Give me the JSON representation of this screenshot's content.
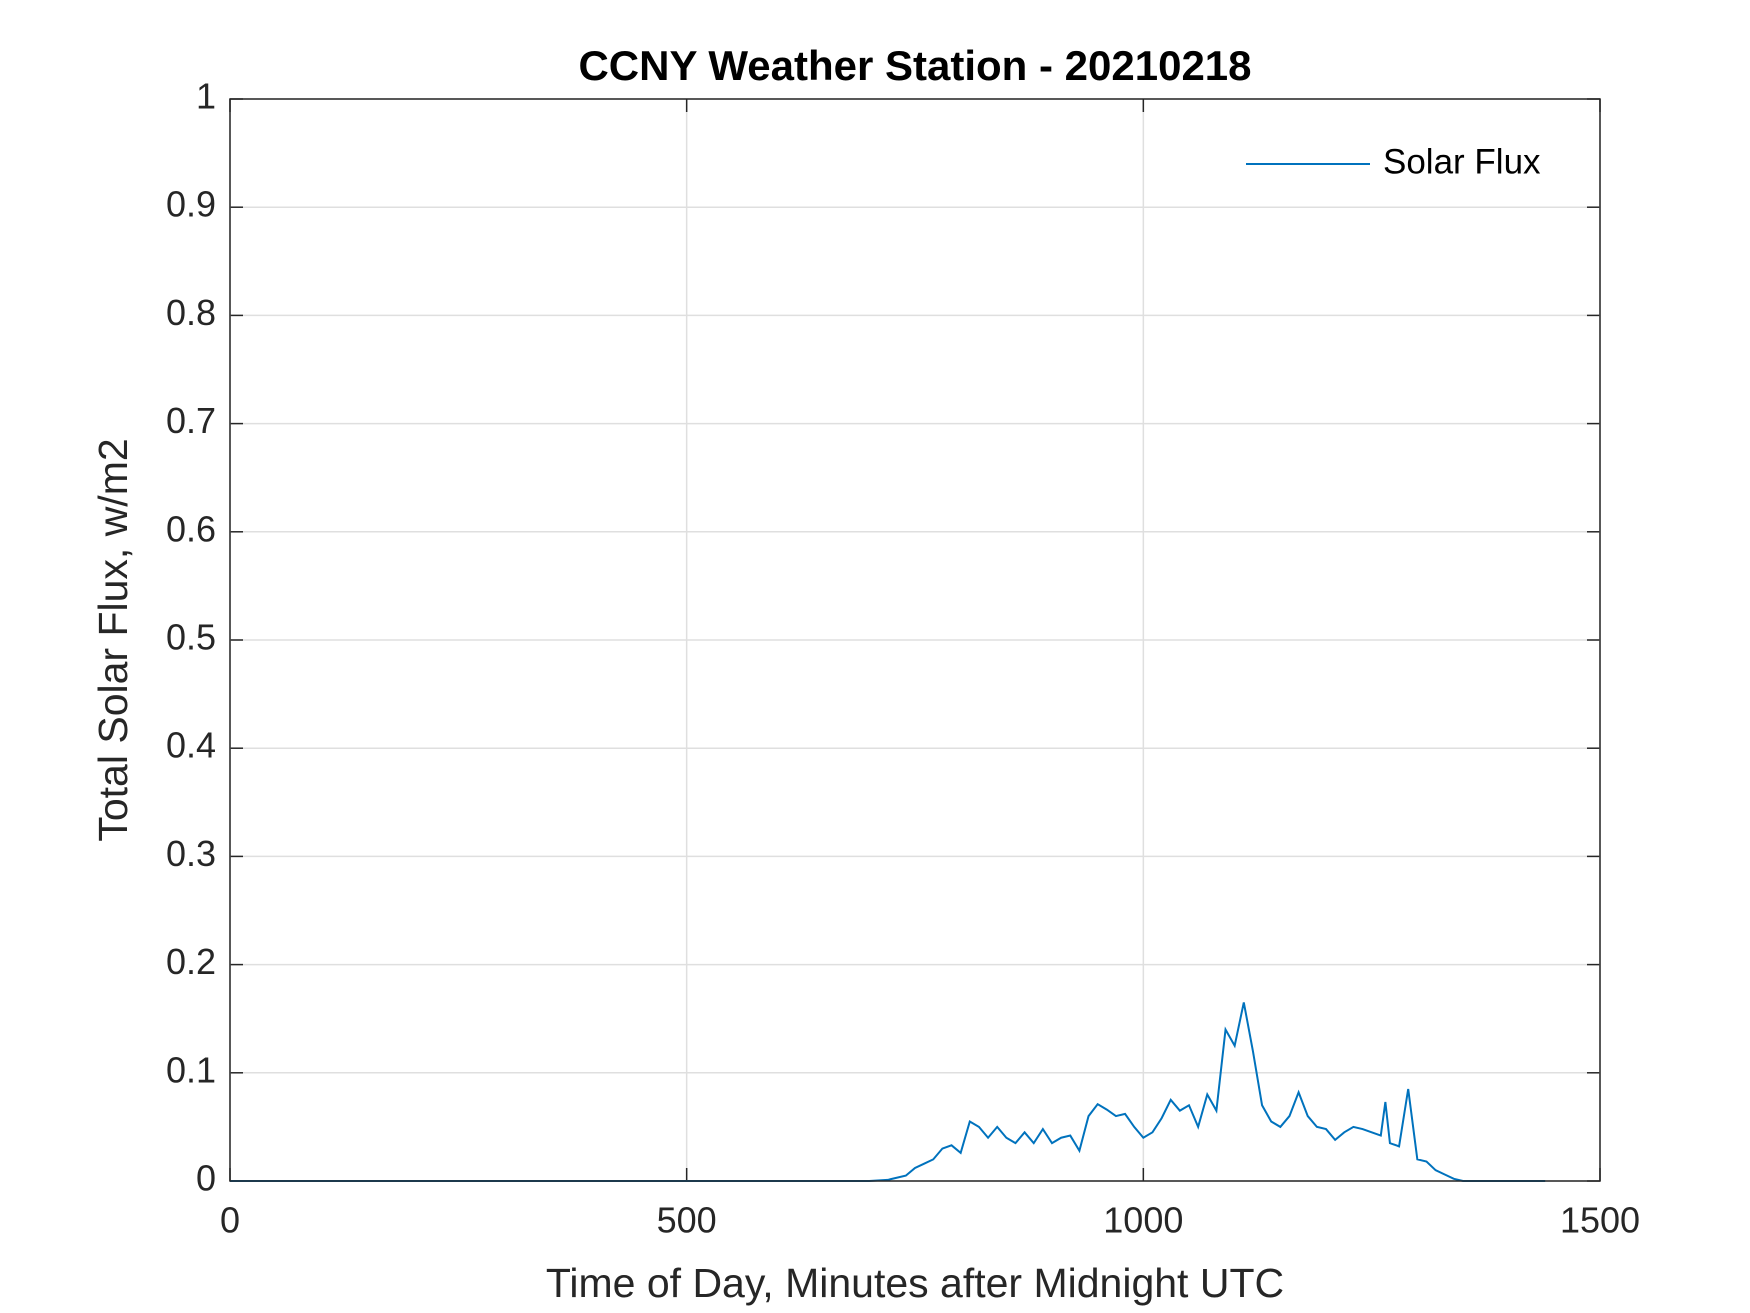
{
  "chart_data": {
    "type": "line",
    "title": "CCNY Weather Station - 20210218",
    "x_label": "Time of Day, Minutes after Midnight UTC",
    "y_label": "Total Solar Flux, w/m2",
    "x": [
      0,
      700,
      720,
      740,
      750,
      760,
      770,
      780,
      790,
      800,
      810,
      820,
      830,
      840,
      850,
      860,
      870,
      880,
      890,
      900,
      910,
      920,
      930,
      940,
      950,
      960,
      970,
      980,
      990,
      1000,
      1010,
      1020,
      1030,
      1040,
      1050,
      1060,
      1070,
      1080,
      1090,
      1100,
      1110,
      1120,
      1130,
      1140,
      1150,
      1160,
      1170,
      1180,
      1190,
      1200,
      1210,
      1220,
      1230,
      1240,
      1250,
      1260,
      1265,
      1270,
      1280,
      1290,
      1300,
      1310,
      1320,
      1330,
      1340,
      1350,
      1440
    ],
    "series": [
      {
        "name": "Solar Flux",
        "color": "#0072bd",
        "values": [
          0,
          0,
          0.001,
          0.005,
          0.012,
          0.016,
          0.02,
          0.03,
          0.033,
          0.026,
          0.055,
          0.05,
          0.04,
          0.05,
          0.04,
          0.035,
          0.045,
          0.035,
          0.048,
          0.035,
          0.04,
          0.042,
          0.028,
          0.06,
          0.071,
          0.066,
          0.06,
          0.062,
          0.05,
          0.04,
          0.045,
          0.058,
          0.075,
          0.065,
          0.07,
          0.05,
          0.08,
          0.065,
          0.14,
          0.125,
          0.165,
          0.12,
          0.07,
          0.055,
          0.05,
          0.06,
          0.082,
          0.06,
          0.05,
          0.048,
          0.038,
          0.045,
          0.05,
          0.048,
          0.045,
          0.042,
          0.073,
          0.035,
          0.032,
          0.085,
          0.02,
          0.018,
          0.01,
          0.006,
          0.002,
          0,
          0
        ]
      }
    ],
    "xlim": [
      0,
      1500
    ],
    "xticks": [
      0,
      500,
      1000,
      1500
    ],
    "ylim": [
      0,
      1
    ],
    "yticks": [
      0,
      0.1,
      0.2,
      0.3,
      0.4,
      0.5,
      0.6,
      0.7,
      0.8,
      0.9,
      1
    ],
    "grid": true,
    "legend": "northeast"
  }
}
